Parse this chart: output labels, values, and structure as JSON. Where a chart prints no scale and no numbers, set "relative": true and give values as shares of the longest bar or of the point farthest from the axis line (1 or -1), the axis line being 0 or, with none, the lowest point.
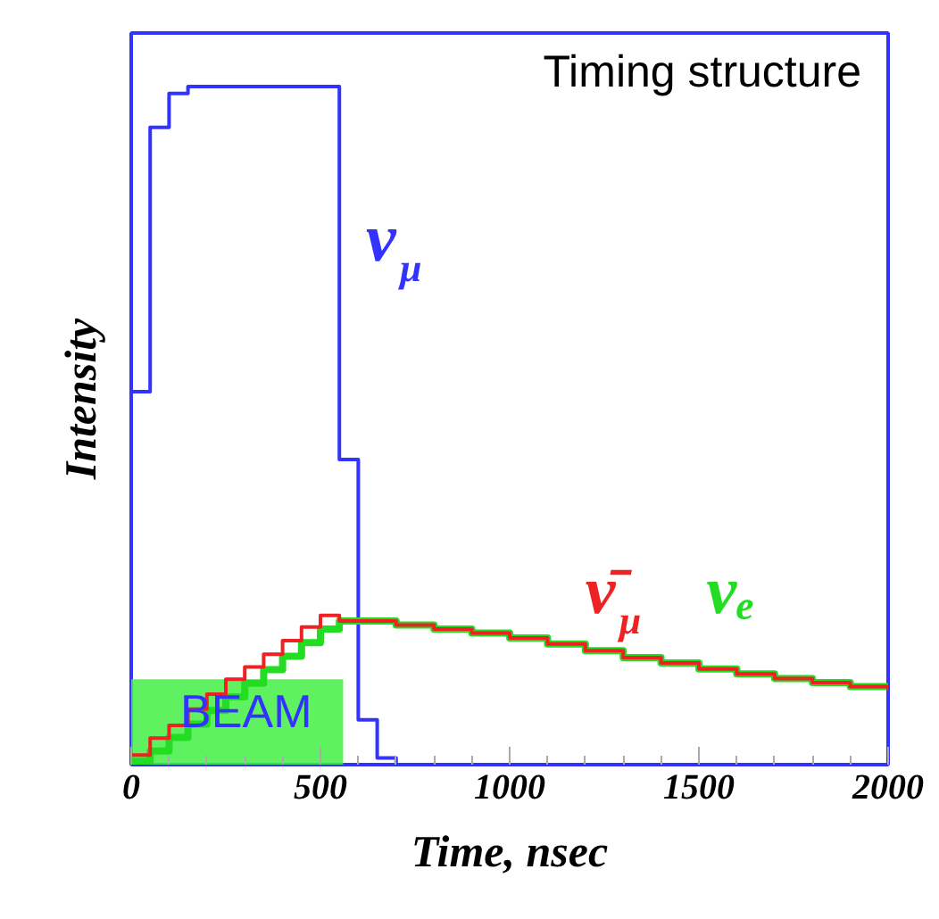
{
  "chart_data": {
    "type": "step",
    "title": "Timing structure",
    "xlabel": "Time, nsec",
    "ylabel": "Intensity",
    "relative": true,
    "tick_labels": "x",
    "xlim": [
      0,
      2000
    ],
    "xticks": [
      0,
      500,
      1000,
      1500,
      2000
    ],
    "series": [
      {
        "name": "BEAM",
        "type": "area",
        "color": "#44ee44",
        "x": [
          0,
          560
        ],
        "values": [
          0.126,
          0.126
        ]
      },
      {
        "name": "ν$_{μ}$",
        "color": "#3333ff",
        "x": [
          0,
          50,
          100,
          150,
          550,
          600,
          650,
          700,
          2000
        ],
        "values": [
          0.55,
          0.94,
          0.99,
          1.0,
          0.45,
          0.066,
          0.01,
          0,
          0
        ]
      },
      {
        "name": "νₑ",
        "color": "#22dd22",
        "x": [
          0,
          50,
          100,
          150,
          200,
          250,
          300,
          350,
          400,
          450,
          500,
          550,
          600,
          700,
          800,
          900,
          1000,
          1100,
          1200,
          1300,
          1400,
          1500,
          1600,
          1700,
          1800,
          1900,
          2000
        ],
        "values": [
          0.005,
          0.02,
          0.04,
          0.06,
          0.08,
          0.1,
          0.12,
          0.14,
          0.16,
          0.18,
          0.2,
          0.212,
          0.212,
          0.206,
          0.2,
          0.194,
          0.187,
          0.178,
          0.168,
          0.158,
          0.15,
          0.141,
          0.134,
          0.127,
          0.121,
          0.115,
          0.11
        ]
      },
      {
        "name": "ν̄$_{μ}$",
        "color": "#ee2222",
        "x": [
          0,
          50,
          100,
          150,
          200,
          250,
          300,
          350,
          400,
          450,
          500,
          550,
          600,
          700,
          800,
          900,
          1000,
          1100,
          1200,
          1300,
          1400,
          1500,
          1600,
          1700,
          1800,
          1900,
          2000
        ],
        "values": [
          0.014,
          0.039,
          0.058,
          0.082,
          0.104,
          0.126,
          0.144,
          0.163,
          0.183,
          0.203,
          0.22,
          0.212,
          0.212,
          0.206,
          0.2,
          0.194,
          0.187,
          0.178,
          0.168,
          0.158,
          0.15,
          0.141,
          0.134,
          0.127,
          0.121,
          0.115,
          0.11
        ]
      }
    ]
  }
}
